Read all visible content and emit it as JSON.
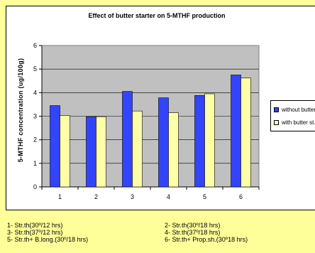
{
  "chart_data": {
    "type": "bar",
    "title": "Effect of butter starter on 5-MTHF production",
    "xlabel": "",
    "ylabel": "5-MTHF  concentration  (ug/100g)",
    "ylim": [
      0,
      6
    ],
    "yticks": [
      "0",
      "1",
      "2",
      "3",
      "4",
      "5",
      "6"
    ],
    "categories": [
      "1",
      "2",
      "3",
      "4",
      "5",
      "6"
    ],
    "grid": true,
    "legend_position": "right",
    "series": [
      {
        "name": "without butter st.",
        "values": [
          3.45,
          2.98,
          4.05,
          3.78,
          3.88,
          4.75
        ],
        "color": "#3344ff"
      },
      {
        "name": "with butter st.",
        "values": [
          3.03,
          2.98,
          3.22,
          3.15,
          3.95,
          4.62
        ],
        "color": "#ffffaa"
      }
    ],
    "plot_background": "#c0c0c0"
  },
  "footnotes": [
    "1- Str.th(30º/12 hrs)",
    "2- Str.th(30º/18 hrs)",
    "3- Str.th(37º/12 hrs)",
    "4- Str.th(37º/18 hrs)",
    "5- Str.th+ B.long.(30º/18 hrs)",
    "6- Str.th+ Prop.sh.(30º18 hrs)"
  ],
  "page_background": "#ffff99"
}
